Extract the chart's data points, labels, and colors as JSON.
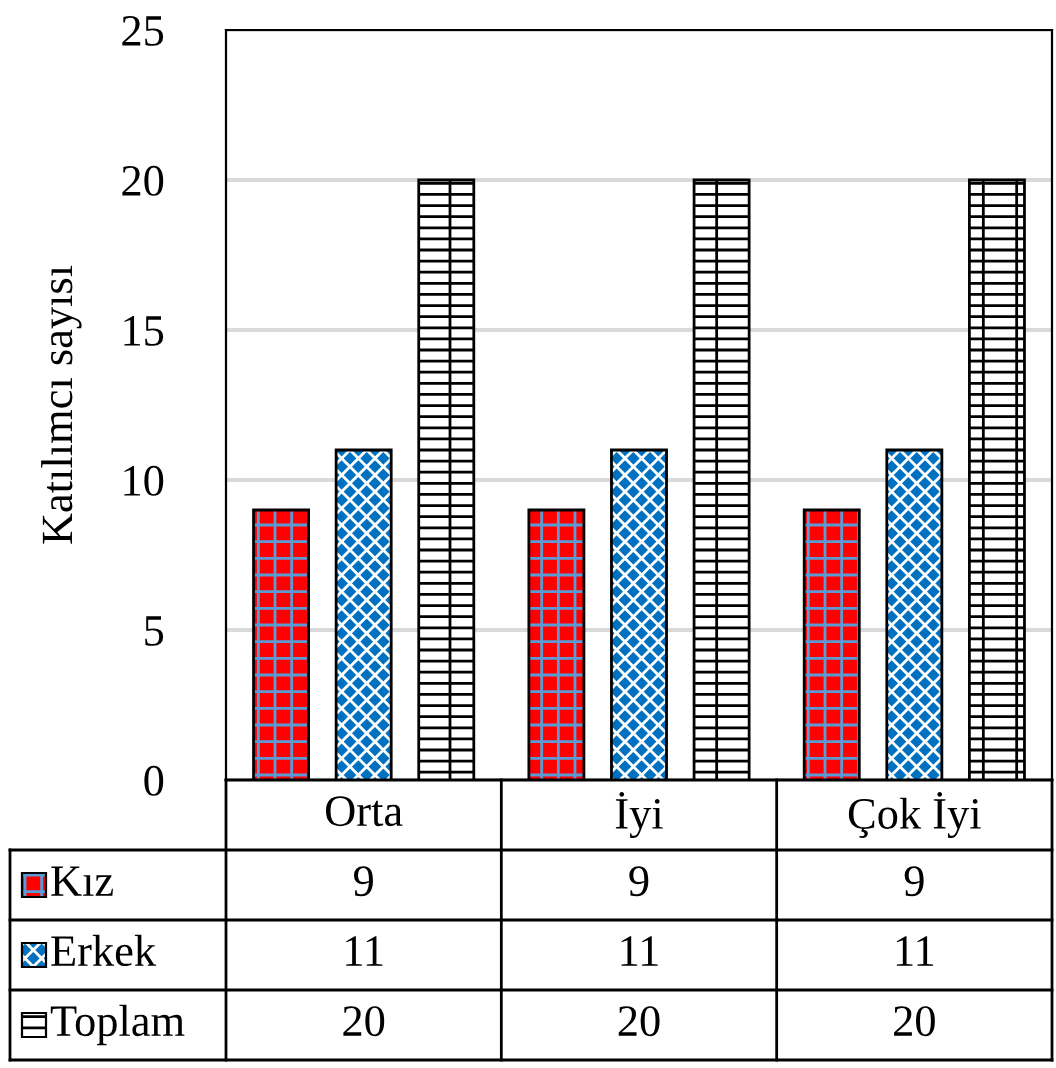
{
  "chart_data": {
    "type": "bar",
    "ylabel": "Katılımcı sayısı",
    "categories": [
      "Orta",
      "İyi",
      "Çok İyi"
    ],
    "series": [
      {
        "name": "Kız",
        "color": "#ff0000",
        "values": [
          9,
          9,
          9
        ]
      },
      {
        "name": "Erkek",
        "color": "#0070c0",
        "values": [
          11,
          11,
          11
        ]
      },
      {
        "name": "Toplam",
        "color": "#ffffff",
        "values": [
          20,
          20,
          20
        ]
      }
    ],
    "ylim": [
      0,
      25
    ],
    "yticks": [
      0,
      5,
      10,
      15,
      20,
      25
    ],
    "grid": "y",
    "legend": "bottom",
    "data_labels": true
  }
}
